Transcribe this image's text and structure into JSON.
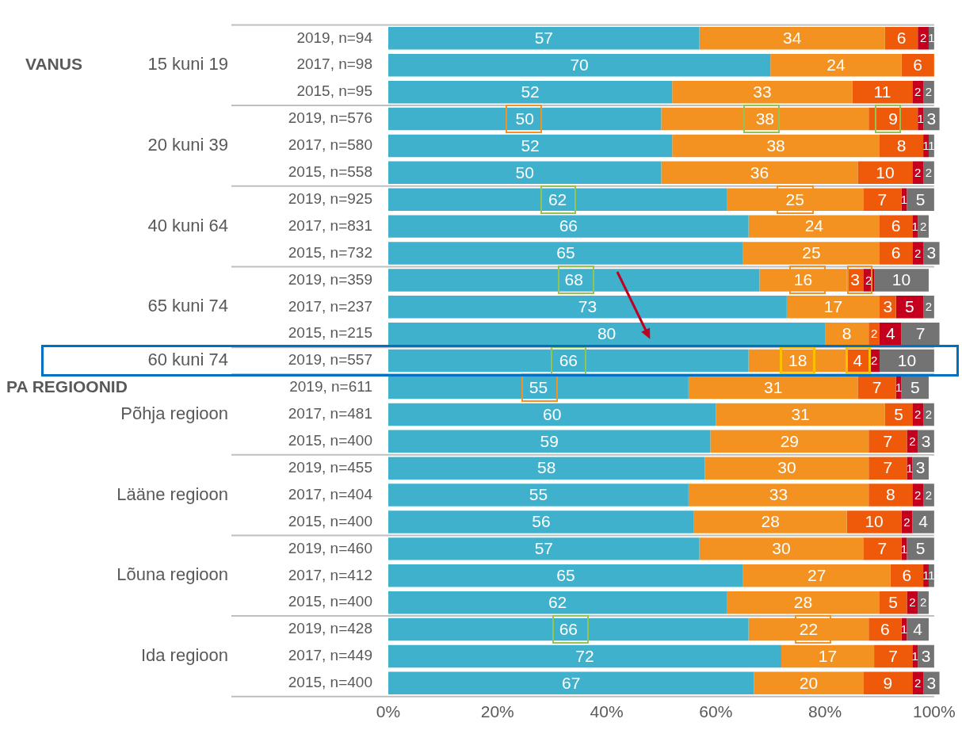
{
  "chart_data": {
    "type": "bar",
    "orientation": "horizontal",
    "stacked": true,
    "categories": [
      "2019, n=94",
      "2017, n=98",
      "2015, n=95",
      "2019, n=576",
      "2017, n=580",
      "2015, n=558",
      "2019, n=925",
      "2017, n=831",
      "2015, n=732",
      "2019, n=359",
      "2017, n=237",
      "2015, n=215",
      "2019, n=557",
      "2019, n=611",
      "2017, n=481",
      "2015, n=400",
      "2019, n=455",
      "2017, n=404",
      "2015, n=400",
      "2019, n=460",
      "2017, n=412",
      "2015, n=400",
      "2019, n=428",
      "2017, n=449",
      "2015, n=400"
    ],
    "series": [
      {
        "color": "#3fb1cc",
        "values": [
          57,
          70,
          52,
          50,
          52,
          50,
          62,
          66,
          65,
          68,
          73,
          80,
          66,
          55,
          60,
          59,
          58,
          55,
          56,
          57,
          65,
          62,
          66,
          72,
          67
        ]
      },
      {
        "color": "#f39221",
        "values": [
          34,
          24,
          33,
          38,
          38,
          36,
          25,
          24,
          25,
          16,
          17,
          8,
          18,
          31,
          31,
          29,
          30,
          33,
          28,
          30,
          27,
          28,
          22,
          17,
          20
        ]
      },
      {
        "color": "#ef5a0a",
        "values": [
          6,
          6,
          11,
          9,
          8,
          10,
          7,
          6,
          6,
          3,
          3,
          2,
          4,
          7,
          5,
          7,
          7,
          8,
          10,
          7,
          6,
          5,
          6,
          7,
          9
        ]
      },
      {
        "color": "#c5001d",
        "values": [
          2,
          null,
          2,
          1,
          1,
          2,
          1,
          1,
          2,
          2,
          5,
          4,
          2,
          1,
          2,
          2,
          1,
          2,
          2,
          1,
          1,
          2,
          1,
          1,
          2
        ]
      },
      {
        "color": "#737373",
        "values": [
          1,
          null,
          2,
          3,
          1,
          2,
          5,
          2,
          3,
          10,
          2,
          7,
          10,
          5,
          2,
          3,
          3,
          2,
          4,
          5,
          1,
          2,
          4,
          3,
          3
        ]
      }
    ],
    "xlim": [
      0,
      101
    ],
    "xticks": [
      {
        "value": 0,
        "label": "0%"
      },
      {
        "value": 20,
        "label": "20%"
      },
      {
        "value": 40,
        "label": "40%"
      },
      {
        "value": 60,
        "label": "60%"
      },
      {
        "value": 80,
        "label": "80%"
      },
      {
        "value": 100,
        "label": "100%"
      }
    ],
    "data_labels": true,
    "grid": false,
    "legend": false,
    "annotations": [
      "VANUS",
      "PA REGIOONID",
      "15 kuni 19",
      "20 kuni 39",
      "40 kuni 64",
      "65 kuni 74",
      "60 kuni 74",
      "Põhja regioon",
      "Lääne regioon",
      "Lõuna regioon",
      "Ida regioon"
    ]
  }
}
